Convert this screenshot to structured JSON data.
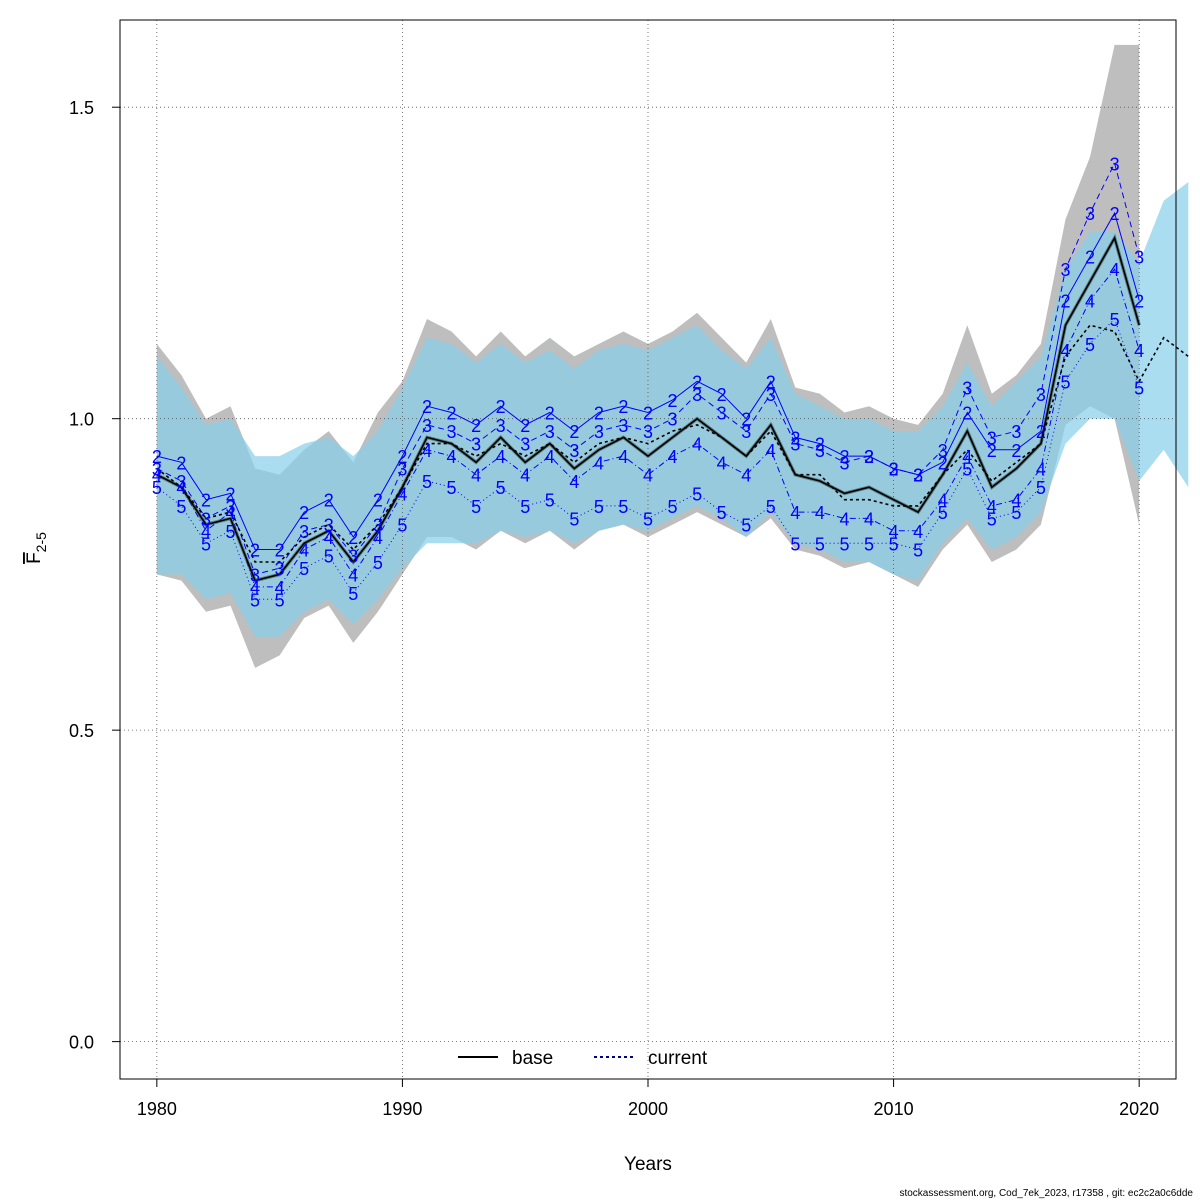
{
  "chart_data": {
    "type": "line",
    "xlabel": "Years",
    "ylabel_main": "F",
    "ylabel_sub": "2-5",
    "xlim": [
      1978.5,
      2021.5
    ],
    "ylim": [
      -0.06,
      1.64
    ],
    "x_ticks": [
      1980,
      1990,
      2000,
      2010,
      2020
    ],
    "x_tick_labels": [
      "1980",
      "1990",
      "2000",
      "2010",
      "2020"
    ],
    "y_ticks": [
      0.0,
      0.5,
      1.0,
      1.5
    ],
    "y_tick_labels": [
      "0.0",
      "0.5",
      "1.0",
      "1.5"
    ],
    "grid": true,
    "legend_position": "bottom-center",
    "footer": "stockassessment.org, Cod_7ek_2023, r17358 , git: ec2c2a0c6dde",
    "colors": {
      "base_band": "#bebebe",
      "current_band": "#87ceeb",
      "age_labels": "#0000ff",
      "base_line": "#000000",
      "current_line": "#00008b"
    },
    "series": [
      {
        "name": "base",
        "years": [
          1980,
          1981,
          1982,
          1983,
          1984,
          1985,
          1986,
          1987,
          1988,
          1989,
          1990,
          1991,
          1992,
          1993,
          1994,
          1995,
          1996,
          1997,
          1998,
          1999,
          2000,
          2001,
          2002,
          2003,
          2004,
          2005,
          2006,
          2007,
          2008,
          2009,
          2010,
          2011,
          2012,
          2013,
          2014,
          2015,
          2016,
          2017,
          2018,
          2019,
          2020
        ],
        "values": [
          0.91,
          0.89,
          0.83,
          0.84,
          0.74,
          0.75,
          0.8,
          0.82,
          0.77,
          0.82,
          0.89,
          0.97,
          0.96,
          0.93,
          0.97,
          0.93,
          0.96,
          0.92,
          0.95,
          0.97,
          0.94,
          0.97,
          1.0,
          0.97,
          0.94,
          0.99,
          0.91,
          0.9,
          0.88,
          0.89,
          0.87,
          0.85,
          0.91,
          0.98,
          0.89,
          0.92,
          0.96,
          1.15,
          1.22,
          1.29,
          1.15
        ],
        "lower": [
          0.75,
          0.74,
          0.69,
          0.7,
          0.6,
          0.62,
          0.68,
          0.7,
          0.64,
          0.69,
          0.75,
          0.81,
          0.81,
          0.79,
          0.82,
          0.8,
          0.82,
          0.79,
          0.82,
          0.83,
          0.81,
          0.83,
          0.85,
          0.83,
          0.81,
          0.84,
          0.79,
          0.78,
          0.76,
          0.77,
          0.75,
          0.73,
          0.79,
          0.83,
          0.77,
          0.79,
          0.83,
          0.99,
          1.02,
          1.0,
          0.83
        ],
        "upper": [
          1.12,
          1.07,
          1.0,
          1.02,
          0.92,
          0.91,
          0.95,
          0.98,
          0.93,
          1.01,
          1.06,
          1.16,
          1.14,
          1.1,
          1.14,
          1.1,
          1.13,
          1.1,
          1.12,
          1.14,
          1.12,
          1.14,
          1.17,
          1.13,
          1.09,
          1.16,
          1.05,
          1.04,
          1.01,
          1.02,
          1.0,
          0.99,
          1.04,
          1.15,
          1.04,
          1.07,
          1.12,
          1.32,
          1.42,
          1.6,
          1.6
        ]
      },
      {
        "name": "current",
        "years": [
          1980,
          1981,
          1982,
          1983,
          1984,
          1985,
          1986,
          1987,
          1988,
          1989,
          1990,
          1991,
          1992,
          1993,
          1994,
          1995,
          1996,
          1997,
          1998,
          1999,
          2000,
          2001,
          2002,
          2003,
          2004,
          2005,
          2006,
          2007,
          2008,
          2009,
          2010,
          2011,
          2012,
          2013,
          2014,
          2015,
          2016,
          2017,
          2018,
          2019,
          2020,
          2021,
          2022
        ],
        "values": [
          0.92,
          0.89,
          0.84,
          0.85,
          0.77,
          0.77,
          0.81,
          0.83,
          0.79,
          0.83,
          0.89,
          0.96,
          0.96,
          0.94,
          0.96,
          0.94,
          0.96,
          0.93,
          0.96,
          0.97,
          0.96,
          0.98,
          0.99,
          0.97,
          0.94,
          0.98,
          0.91,
          0.91,
          0.87,
          0.87,
          0.86,
          0.86,
          0.91,
          0.95,
          0.9,
          0.93,
          0.96,
          1.1,
          1.15,
          1.14,
          1.06,
          1.13,
          1.1
        ],
        "lower": [
          0.75,
          0.75,
          0.71,
          0.72,
          0.65,
          0.65,
          0.69,
          0.71,
          0.67,
          0.71,
          0.76,
          0.8,
          0.8,
          0.8,
          0.82,
          0.81,
          0.82,
          0.8,
          0.82,
          0.83,
          0.82,
          0.84,
          0.86,
          0.84,
          0.81,
          0.85,
          0.8,
          0.79,
          0.77,
          0.77,
          0.75,
          0.74,
          0.8,
          0.84,
          0.79,
          0.81,
          0.85,
          0.96,
          1.0,
          1.0,
          0.9,
          0.95,
          0.89
        ],
        "upper": [
          1.1,
          1.05,
          0.99,
          1.0,
          0.94,
          0.94,
          0.96,
          0.97,
          0.94,
          0.98,
          1.05,
          1.13,
          1.12,
          1.09,
          1.12,
          1.09,
          1.11,
          1.08,
          1.11,
          1.12,
          1.11,
          1.13,
          1.15,
          1.11,
          1.08,
          1.13,
          1.04,
          1.02,
          1.0,
          1.0,
          0.98,
          0.98,
          1.02,
          1.09,
          1.02,
          1.06,
          1.1,
          1.24,
          1.3,
          1.3,
          1.25,
          1.35,
          1.38
        ]
      }
    ],
    "age_series": [
      {
        "label": "2",
        "line": "solid",
        "values": [
          0.94,
          0.93,
          0.87,
          0.88,
          0.79,
          0.79,
          0.85,
          0.87,
          0.81,
          0.87,
          0.94,
          1.02,
          1.01,
          0.99,
          1.02,
          0.99,
          1.01,
          0.98,
          1.01,
          1.02,
          1.01,
          1.03,
          1.06,
          1.04,
          1.0,
          1.06,
          0.97,
          0.96,
          0.94,
          0.94,
          0.92,
          0.91,
          0.93,
          1.01,
          0.95,
          0.95,
          0.98,
          1.19,
          1.26,
          1.33,
          1.19
        ]
      },
      {
        "label": "3",
        "line": "dashed",
        "values": [
          0.92,
          0.9,
          0.84,
          0.86,
          0.75,
          0.76,
          0.82,
          0.83,
          0.78,
          0.83,
          0.92,
          0.99,
          0.98,
          0.96,
          0.99,
          0.96,
          0.98,
          0.95,
          0.98,
          0.99,
          0.98,
          1.0,
          1.04,
          1.01,
          0.98,
          1.04,
          0.96,
          0.95,
          0.93,
          0.94,
          0.92,
          0.91,
          0.95,
          1.05,
          0.97,
          0.98,
          1.04,
          1.24,
          1.33,
          1.41,
          1.26
        ]
      },
      {
        "label": "4",
        "line": "dotdash",
        "values": [
          0.91,
          0.89,
          0.82,
          0.85,
          0.73,
          0.73,
          0.79,
          0.81,
          0.75,
          0.81,
          0.88,
          0.95,
          0.94,
          0.91,
          0.94,
          0.91,
          0.94,
          0.9,
          0.93,
          0.94,
          0.91,
          0.94,
          0.96,
          0.93,
          0.91,
          0.95,
          0.85,
          0.85,
          0.84,
          0.84,
          0.82,
          0.82,
          0.87,
          0.94,
          0.86,
          0.87,
          0.92,
          1.11,
          1.19,
          1.24,
          1.11
        ]
      },
      {
        "label": "5",
        "line": "dotted",
        "values": [
          0.89,
          0.86,
          0.8,
          0.82,
          0.71,
          0.71,
          0.76,
          0.78,
          0.72,
          0.77,
          0.83,
          0.9,
          0.89,
          0.86,
          0.89,
          0.86,
          0.87,
          0.84,
          0.86,
          0.86,
          0.84,
          0.86,
          0.88,
          0.85,
          0.83,
          0.86,
          0.8,
          0.8,
          0.8,
          0.8,
          0.8,
          0.79,
          0.85,
          0.92,
          0.84,
          0.85,
          0.89,
          1.06,
          1.12,
          1.16,
          1.05
        ]
      }
    ]
  }
}
